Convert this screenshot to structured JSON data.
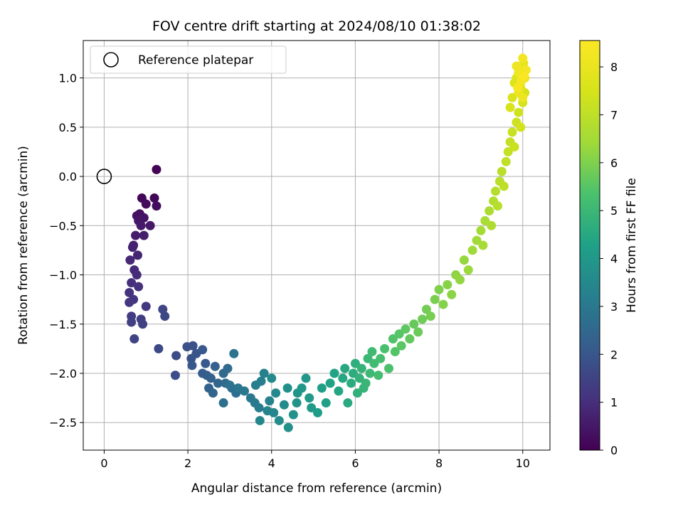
{
  "chart_data": {
    "type": "scatter",
    "title": "FOV centre drift starting at 2024/08/10 01:38:02",
    "xlabel": "Angular distance from reference (arcmin)",
    "ylabel": "Rotation from reference (arcmin)",
    "xlim": [
      -0.5,
      10.65
    ],
    "ylim": [
      -2.78,
      1.38
    ],
    "xticks": [
      0,
      2,
      4,
      6,
      8,
      10
    ],
    "yticks": [
      -2.5,
      -2.0,
      -1.5,
      -1.0,
      -0.5,
      0.0,
      0.5,
      1.0
    ],
    "xtick_labels": [
      "0",
      "2",
      "4",
      "6",
      "8",
      "10"
    ],
    "ytick_labels": [
      "−2.5",
      "−2.0",
      "−1.5",
      "−1.0",
      "−0.5",
      "0.0",
      "0.5",
      "1.0"
    ],
    "grid": true,
    "legend": {
      "position": "top-left",
      "entries": [
        {
          "label": "Reference platepar",
          "marker": "open-circle"
        }
      ]
    },
    "reference_point": {
      "x": 0,
      "y": 0
    },
    "colorbar": {
      "label": "Hours from first FF file",
      "colormap": "viridis",
      "range": [
        0,
        8.55
      ],
      "ticks": [
        0,
        1,
        2,
        3,
        4,
        5,
        6,
        7,
        8
      ],
      "tick_labels": [
        "0",
        "1",
        "2",
        "3",
        "4",
        "5",
        "6",
        "7",
        "8"
      ]
    },
    "series": [
      {
        "columns": [
          "x",
          "y",
          "hours"
        ],
        "points": [
          [
            1.25,
            0.07,
            0.05
          ],
          [
            0.9,
            -0.22,
            0.1
          ],
          [
            1.2,
            -0.22,
            0.15
          ],
          [
            1.0,
            -0.28,
            0.2
          ],
          [
            1.25,
            -0.3,
            0.25
          ],
          [
            0.85,
            -0.38,
            0.3
          ],
          [
            0.78,
            -0.4,
            0.35
          ],
          [
            0.95,
            -0.42,
            0.4
          ],
          [
            0.82,
            -0.45,
            0.45
          ],
          [
            1.1,
            -0.5,
            0.5
          ],
          [
            0.88,
            -0.5,
            0.55
          ],
          [
            0.75,
            -0.6,
            0.6
          ],
          [
            0.95,
            -0.6,
            0.65
          ],
          [
            0.7,
            -0.7,
            0.7
          ],
          [
            0.68,
            -0.72,
            0.75
          ],
          [
            0.8,
            -0.8,
            0.8
          ],
          [
            0.62,
            -0.85,
            0.85
          ],
          [
            0.72,
            -0.95,
            0.9
          ],
          [
            0.78,
            -1.0,
            0.95
          ],
          [
            0.65,
            -1.08,
            1.0
          ],
          [
            0.82,
            -1.12,
            1.05
          ],
          [
            0.6,
            -1.18,
            1.1
          ],
          [
            0.7,
            -1.25,
            1.15
          ],
          [
            0.6,
            -1.28,
            1.2
          ],
          [
            1.0,
            -1.32,
            1.25
          ],
          [
            0.65,
            -1.42,
            1.3
          ],
          [
            0.88,
            -1.45,
            1.35
          ],
          [
            0.65,
            -1.48,
            1.4
          ],
          [
            0.92,
            -1.5,
            1.45
          ],
          [
            0.72,
            -1.65,
            1.5
          ],
          [
            1.4,
            -1.35,
            1.55
          ],
          [
            1.45,
            -1.42,
            1.6
          ],
          [
            1.3,
            -1.75,
            1.65
          ],
          [
            1.72,
            -1.82,
            1.7
          ],
          [
            1.7,
            -2.02,
            1.75
          ],
          [
            1.98,
            -1.73,
            1.8
          ],
          [
            2.12,
            -1.72,
            1.85
          ],
          [
            2.08,
            -1.85,
            1.9
          ],
          [
            2.2,
            -1.8,
            1.95
          ],
          [
            2.1,
            -1.92,
            2.0
          ],
          [
            2.35,
            -1.76,
            2.05
          ],
          [
            2.42,
            -1.9,
            2.1
          ],
          [
            2.35,
            -2.0,
            2.15
          ],
          [
            2.45,
            -2.02,
            2.2
          ],
          [
            2.55,
            -2.05,
            2.25
          ],
          [
            2.65,
            -1.93,
            2.3
          ],
          [
            2.5,
            -2.15,
            2.35
          ],
          [
            2.6,
            -2.2,
            2.4
          ],
          [
            2.72,
            -2.1,
            2.45
          ],
          [
            2.85,
            -2.0,
            2.5
          ],
          [
            2.95,
            -1.95,
            2.55
          ],
          [
            2.9,
            -2.1,
            2.6
          ],
          [
            3.05,
            -2.15,
            2.65
          ],
          [
            3.15,
            -2.2,
            2.7
          ],
          [
            2.85,
            -2.3,
            2.75
          ],
          [
            3.0,
            -2.12,
            2.8
          ],
          [
            3.1,
            -1.8,
            2.85
          ],
          [
            3.2,
            -2.15,
            2.9
          ],
          [
            3.35,
            -2.18,
            2.95
          ],
          [
            3.5,
            -2.25,
            3.0
          ],
          [
            3.6,
            -2.3,
            3.05
          ],
          [
            3.7,
            -2.35,
            3.1
          ],
          [
            3.62,
            -2.12,
            3.15
          ],
          [
            3.75,
            -2.08,
            3.2
          ],
          [
            3.82,
            -2.0,
            3.25
          ],
          [
            3.95,
            -2.28,
            3.3
          ],
          [
            3.9,
            -2.38,
            3.35
          ],
          [
            4.05,
            -2.4,
            3.4
          ],
          [
            3.72,
            -2.48,
            3.45
          ],
          [
            4.1,
            -2.2,
            3.5
          ],
          [
            4.0,
            -2.05,
            3.55
          ],
          [
            4.18,
            -2.48,
            3.6
          ],
          [
            4.3,
            -2.32,
            3.65
          ],
          [
            4.38,
            -2.15,
            3.7
          ],
          [
            4.4,
            -2.55,
            3.75
          ],
          [
            4.52,
            -2.42,
            3.8
          ],
          [
            4.6,
            -2.3,
            3.85
          ],
          [
            4.62,
            -2.2,
            3.9
          ],
          [
            4.72,
            -2.15,
            3.95
          ],
          [
            4.82,
            -2.05,
            4.0
          ],
          [
            4.9,
            -2.25,
            4.05
          ],
          [
            4.95,
            -2.35,
            4.1
          ],
          [
            5.1,
            -2.4,
            4.15
          ],
          [
            5.2,
            -2.15,
            4.2
          ],
          [
            5.3,
            -2.3,
            4.25
          ],
          [
            5.4,
            -2.1,
            4.3
          ],
          [
            5.5,
            -2.0,
            4.35
          ],
          [
            5.6,
            -2.18,
            4.4
          ],
          [
            5.7,
            -2.05,
            4.45
          ],
          [
            5.75,
            -1.95,
            4.5
          ],
          [
            5.82,
            -2.3,
            4.55
          ],
          [
            5.9,
            -2.1,
            4.6
          ],
          [
            5.95,
            -2.0,
            4.65
          ],
          [
            6.0,
            -1.9,
            4.7
          ],
          [
            6.05,
            -2.2,
            4.75
          ],
          [
            6.1,
            -2.05,
            4.8
          ],
          [
            6.15,
            -1.95,
            4.85
          ],
          [
            6.2,
            -2.15,
            4.9
          ],
          [
            6.25,
            -2.1,
            4.95
          ],
          [
            6.3,
            -1.85,
            5.0
          ],
          [
            6.35,
            -2.0,
            5.05
          ],
          [
            6.4,
            -1.78,
            5.1
          ],
          [
            6.45,
            -1.9,
            5.15
          ],
          [
            6.55,
            -2.02,
            5.2
          ],
          [
            6.6,
            -1.85,
            5.25
          ],
          [
            6.7,
            -1.75,
            5.3
          ],
          [
            6.8,
            -1.95,
            5.35
          ],
          [
            6.9,
            -1.65,
            5.4
          ],
          [
            6.95,
            -1.78,
            5.45
          ],
          [
            7.05,
            -1.6,
            5.5
          ],
          [
            7.1,
            -1.72,
            5.55
          ],
          [
            7.2,
            -1.55,
            5.6
          ],
          [
            7.3,
            -1.65,
            5.65
          ],
          [
            7.4,
            -1.5,
            5.7
          ],
          [
            7.5,
            -1.58,
            5.75
          ],
          [
            7.6,
            -1.45,
            5.8
          ],
          [
            7.7,
            -1.35,
            5.85
          ],
          [
            7.8,
            -1.42,
            5.9
          ],
          [
            7.9,
            -1.25,
            5.95
          ],
          [
            8.0,
            -1.15,
            6.0
          ],
          [
            8.1,
            -1.3,
            6.05
          ],
          [
            8.2,
            -1.1,
            6.1
          ],
          [
            8.3,
            -1.2,
            6.15
          ],
          [
            8.4,
            -1.0,
            6.2
          ],
          [
            8.5,
            -1.05,
            6.25
          ],
          [
            8.6,
            -0.85,
            6.3
          ],
          [
            8.7,
            -0.95,
            6.35
          ],
          [
            8.8,
            -0.75,
            6.4
          ],
          [
            8.9,
            -0.65,
            6.45
          ],
          [
            9.0,
            -0.55,
            6.5
          ],
          [
            9.05,
            -0.7,
            6.55
          ],
          [
            9.1,
            -0.45,
            6.6
          ],
          [
            9.2,
            -0.35,
            6.65
          ],
          [
            9.25,
            -0.5,
            6.7
          ],
          [
            9.3,
            -0.25,
            6.75
          ],
          [
            9.35,
            -0.15,
            6.8
          ],
          [
            9.4,
            -0.3,
            6.85
          ],
          [
            9.45,
            -0.05,
            6.9
          ],
          [
            9.5,
            0.05,
            6.95
          ],
          [
            9.55,
            -0.1,
            7.0
          ],
          [
            9.6,
            0.15,
            7.05
          ],
          [
            9.65,
            0.25,
            7.1
          ],
          [
            9.7,
            0.35,
            7.15
          ],
          [
            9.75,
            0.45,
            7.2
          ],
          [
            9.8,
            0.3,
            7.25
          ],
          [
            9.85,
            0.55,
            7.3
          ],
          [
            9.9,
            0.65,
            7.35
          ],
          [
            9.95,
            0.5,
            7.4
          ],
          [
            10.0,
            0.75,
            7.45
          ],
          [
            10.05,
            0.85,
            7.5
          ],
          [
            9.7,
            0.7,
            7.55
          ],
          [
            9.75,
            0.8,
            7.6
          ],
          [
            9.8,
            0.95,
            7.65
          ],
          [
            9.85,
            1.0,
            7.7
          ],
          [
            9.9,
            1.05,
            7.75
          ],
          [
            9.95,
            0.9,
            7.8
          ],
          [
            10.0,
            1.1,
            7.85
          ],
          [
            10.02,
            1.15,
            7.9
          ],
          [
            10.05,
            1.0,
            7.95
          ],
          [
            9.9,
            0.85,
            8.0
          ],
          [
            9.95,
            0.95,
            8.05
          ],
          [
            10.0,
            0.8,
            8.1
          ],
          [
            9.85,
            1.12,
            8.15
          ],
          [
            9.92,
            1.05,
            8.2
          ],
          [
            10.0,
            1.2,
            8.25
          ],
          [
            10.08,
            1.08,
            8.3
          ],
          [
            9.98,
            0.98,
            8.35
          ],
          [
            9.88,
            0.9,
            8.4
          ],
          [
            10.03,
            1.02,
            8.45
          ]
        ]
      }
    ]
  }
}
